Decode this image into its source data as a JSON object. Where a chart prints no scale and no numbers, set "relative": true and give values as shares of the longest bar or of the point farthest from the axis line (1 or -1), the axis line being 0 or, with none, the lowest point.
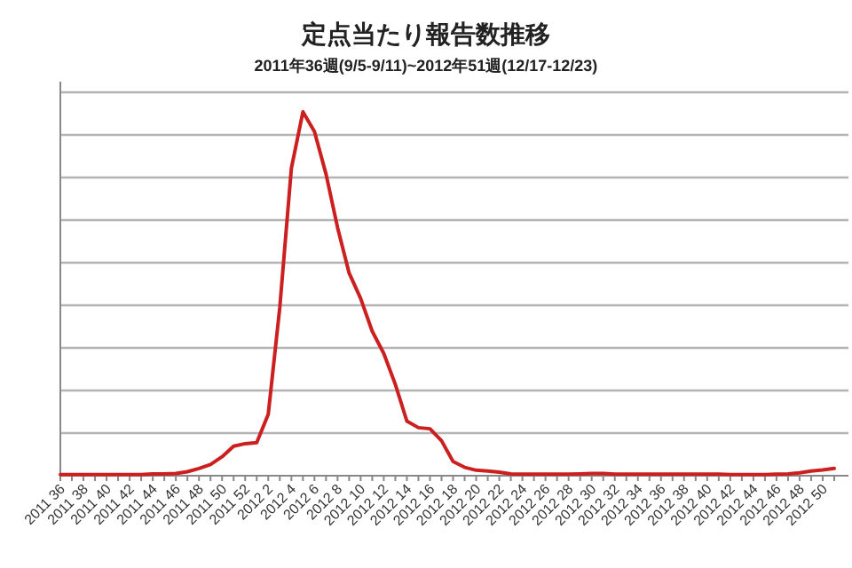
{
  "chart_data": {
    "type": "line",
    "title": "定点当たり報告数推移",
    "subtitle": "2011年36週(9/5-9/11)~2012年51週(12/17-12/23)",
    "relative": true,
    "grid": "y",
    "marker": "none",
    "line_style": "solid",
    "categories": [
      "2011 36",
      null,
      "2011 38",
      null,
      "2011 40",
      null,
      "2011 42",
      null,
      "2011 44",
      null,
      "2011 46",
      null,
      "2011 48",
      null,
      "2011 50",
      null,
      "2011 52",
      null,
      "2012 2",
      null,
      "2012 4",
      null,
      "2012 6",
      null,
      "2012 8",
      null,
      "2012 10",
      null,
      "2012 12",
      null,
      "2012 14",
      null,
      "2012 16",
      null,
      "2012 18",
      null,
      "2012 20",
      null,
      "2012 22",
      null,
      "2012 24",
      null,
      "2012 26",
      null,
      "2012 28",
      null,
      "2012 30",
      null,
      "2012 32",
      null,
      "2012 34",
      null,
      "2012 36",
      null,
      "2012 38",
      null,
      "2012 40",
      null,
      "2012 42",
      null,
      "2012 44",
      null,
      "2012 46",
      null,
      "2012 48",
      null,
      "2012 50",
      null
    ],
    "series": [
      {
        "color": "#cc1f1f",
        "values": [
          0.003,
          0.003,
          0.003,
          0.003,
          0.003,
          0.003,
          0.003,
          0.003,
          0.005,
          0.005,
          0.006,
          0.011,
          0.02,
          0.031,
          0.052,
          0.081,
          0.088,
          0.091,
          0.169,
          0.463,
          0.845,
          1,
          0.946,
          0.829,
          0.682,
          0.557,
          0.487,
          0.397,
          0.336,
          0.251,
          0.15,
          0.132,
          0.129,
          0.096,
          0.039,
          0.023,
          0.015,
          0.013,
          0.01,
          0.005,
          0.004,
          0.004,
          0.004,
          0.004,
          0.004,
          0.005,
          0.006,
          0.006,
          0.004,
          0.004,
          0.004,
          0.004,
          0.004,
          0.004,
          0.004,
          0.004,
          0.004,
          0.004,
          0.003,
          0.003,
          0.003,
          0.003,
          0.004,
          0.005,
          0.008,
          0.013,
          0.016,
          0.02
        ]
      }
    ]
  }
}
